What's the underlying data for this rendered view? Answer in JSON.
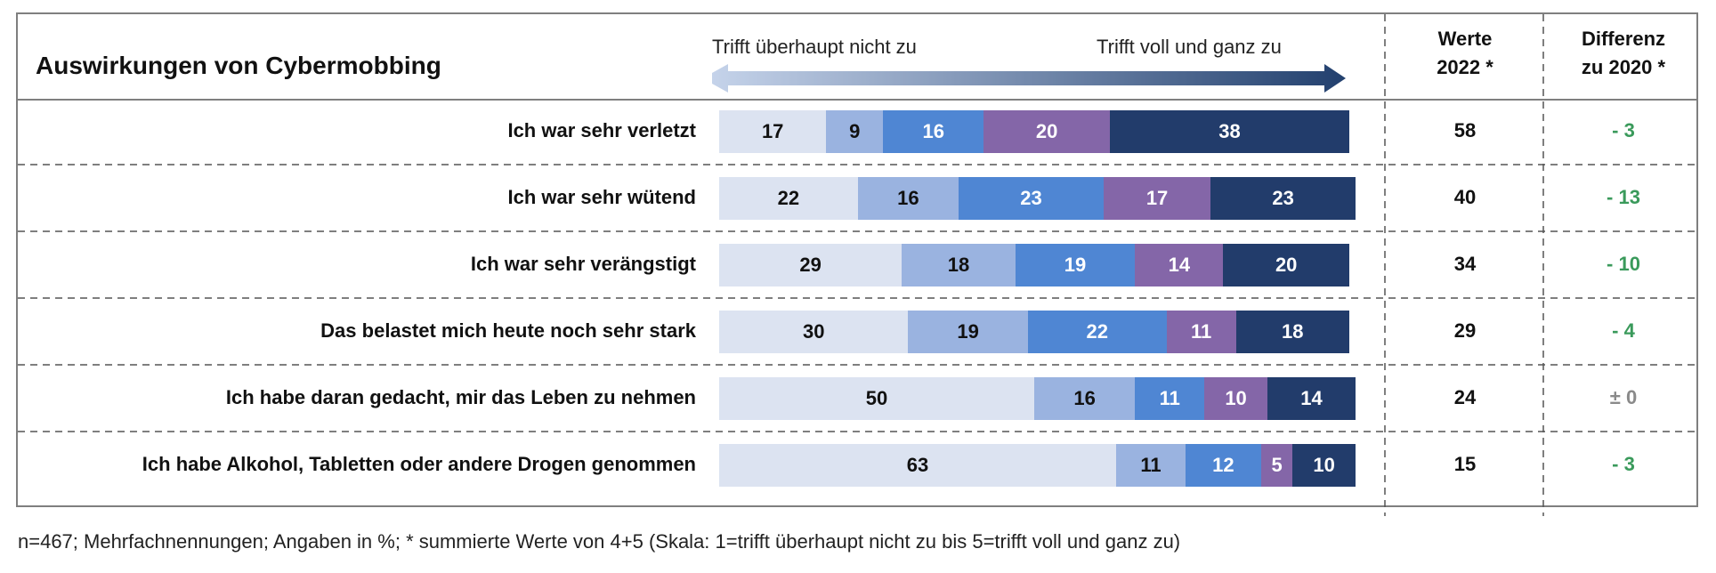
{
  "chart_data": {
    "type": "bar",
    "stacked": true,
    "orientation": "horizontal",
    "title": "Auswirkungen von Cybermobbing",
    "scale_labels": {
      "low": "Trifft überhaupt nicht zu",
      "high": "Trifft voll und ganz zu"
    },
    "columns": {
      "werte": [
        "Werte",
        "2022 *"
      ],
      "differenz": [
        "Differenz",
        "zu 2020 *"
      ]
    },
    "categories": [
      "Ich war sehr verletzt",
      "Ich war sehr wütend",
      "Ich war sehr verängstigt",
      "Das belastet mich heute noch sehr stark",
      "Ich habe daran gedacht, mir das Leben zu nehmen",
      "Ich habe Alkohol, Tabletten oder andere Drogen genommen"
    ],
    "series": [
      {
        "values": [
          17,
          22,
          29,
          30,
          50,
          63
        ],
        "color": "#dce3f1",
        "text_color": "#111111"
      },
      {
        "values": [
          9,
          16,
          18,
          19,
          16,
          11
        ],
        "color": "#9ab3e0",
        "text_color": "#111111"
      },
      {
        "values": [
          16,
          23,
          19,
          22,
          11,
          12
        ],
        "color": "#4f86d3",
        "text_color": "#ffffff"
      },
      {
        "values": [
          20,
          17,
          14,
          11,
          10,
          5
        ],
        "color": "#8466a8",
        "text_color": "#ffffff"
      },
      {
        "values": [
          38,
          23,
          20,
          18,
          14,
          10
        ],
        "color": "#223c6b",
        "text_color": "#ffffff"
      }
    ],
    "werte_2022": [
      "58",
      "40",
      "34",
      "29",
      "24",
      "15"
    ],
    "differenz_2020": [
      "- 3",
      "- 13",
      "- 10",
      "- 4",
      "± 0",
      "- 3"
    ],
    "differenz_colors": [
      "#3a9a5b",
      "#3a9a5b",
      "#3a9a5b",
      "#3a9a5b",
      "#8a8a8a",
      "#3a9a5b"
    ],
    "xlim": [
      0,
      100
    ]
  },
  "footnote": "n=467; Mehrfachnennungen; Angaben in %; * summierte Werte von 4+5 (Skala: 1=trifft überhaupt nicht zu bis 5=trifft voll und ganz zu)"
}
